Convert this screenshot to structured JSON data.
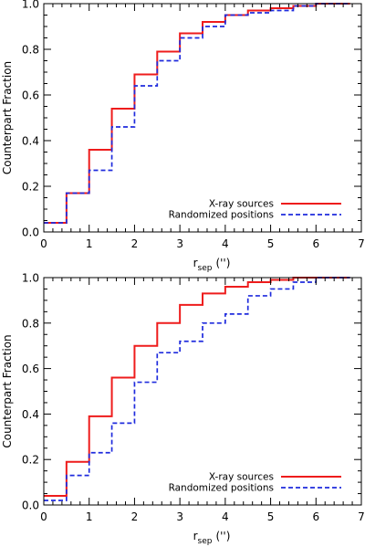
{
  "chart_data": [
    {
      "type": "line",
      "style": "step",
      "xlabel_base": "r",
      "xlabel_sub": "sep",
      "xlabel_unit": "('')",
      "ylabel": "Counterpart Fraction",
      "xlim": [
        0,
        7
      ],
      "ylim": [
        0,
        1
      ],
      "xticks": [
        "0",
        "1",
        "2",
        "3",
        "4",
        "5",
        "6",
        "7"
      ],
      "yticks": [
        "0.0",
        "0.2",
        "0.4",
        "0.6",
        "0.8",
        "1.0"
      ],
      "legend_position": "bottom-right",
      "series": [
        {
          "name": "X-ray sources",
          "color": "#ee1c1c",
          "dash": "solid",
          "x": [
            0,
            0.5,
            1.0,
            1.5,
            2.0,
            2.5,
            3.0,
            3.5,
            4.0,
            4.5,
            5.0,
            5.5,
            6.0,
            6.5,
            6.75
          ],
          "values": [
            0.04,
            0.17,
            0.36,
            0.54,
            0.69,
            0.79,
            0.87,
            0.92,
            0.95,
            0.97,
            0.98,
            0.99,
            1.0,
            1.0,
            1.0
          ]
        },
        {
          "name": "Randomized positions",
          "color": "#1f2bdd",
          "dash": "dashed",
          "x": [
            0,
            0.5,
            1.0,
            1.5,
            2.0,
            2.5,
            3.0,
            3.5,
            4.0,
            4.5,
            5.0,
            5.5,
            6.0,
            6.5,
            6.75
          ],
          "values": [
            0.04,
            0.17,
            0.27,
            0.46,
            0.64,
            0.75,
            0.85,
            0.9,
            0.95,
            0.96,
            0.97,
            0.99,
            1.0,
            1.0,
            1.0
          ]
        }
      ]
    },
    {
      "type": "line",
      "style": "step",
      "xlabel_base": "r",
      "xlabel_sub": "sep",
      "xlabel_unit": "('')",
      "ylabel": "Counterpart Fraction",
      "xlim": [
        0,
        7
      ],
      "ylim": [
        0,
        1
      ],
      "xticks": [
        "0",
        "1",
        "2",
        "3",
        "4",
        "5",
        "6",
        "7"
      ],
      "yticks": [
        "0.0",
        "0.2",
        "0.4",
        "0.6",
        "0.8",
        "1.0"
      ],
      "legend_position": "bottom-right",
      "series": [
        {
          "name": "X-ray sources",
          "color": "#ee1c1c",
          "dash": "solid",
          "x": [
            0,
            0.5,
            1.0,
            1.5,
            2.0,
            2.5,
            3.0,
            3.5,
            4.0,
            4.5,
            5.0,
            5.5,
            6.0,
            6.5,
            6.75
          ],
          "values": [
            0.04,
            0.19,
            0.39,
            0.56,
            0.7,
            0.8,
            0.88,
            0.93,
            0.96,
            0.98,
            0.99,
            1.0,
            1.0,
            1.0,
            1.0
          ]
        },
        {
          "name": "Randomized positions",
          "color": "#1f2bdd",
          "dash": "dashed",
          "x": [
            0,
            0.5,
            1.0,
            1.5,
            2.0,
            2.5,
            3.0,
            3.5,
            4.0,
            4.5,
            5.0,
            5.5,
            6.0,
            6.5,
            6.75
          ],
          "values": [
            0.02,
            0.13,
            0.23,
            0.36,
            0.54,
            0.67,
            0.72,
            0.8,
            0.84,
            0.92,
            0.95,
            0.98,
            1.0,
            1.0,
            1.0
          ]
        }
      ]
    }
  ]
}
